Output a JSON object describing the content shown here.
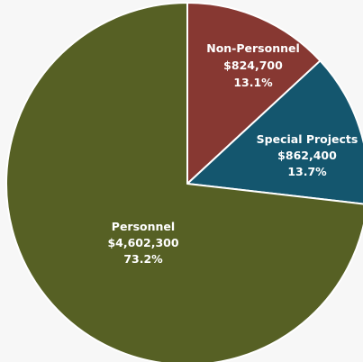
{
  "chart_data": {
    "type": "pie",
    "slices": [
      {
        "name": "Non-Personnel",
        "value": 824700,
        "amount_label": "$824,700",
        "percent_label": "13.1%",
        "color": "#873832"
      },
      {
        "name": "Special Projects",
        "value": 862400,
        "amount_label": "$862,400",
        "percent_label": "13.7%",
        "color": "#14566e"
      },
      {
        "name": "Personnel",
        "value": 4602300,
        "amount_label": "$4,602,300",
        "percent_label": "73.2%",
        "color": "#566024"
      }
    ],
    "start_angle_deg": 0,
    "direction": "clockwise"
  }
}
